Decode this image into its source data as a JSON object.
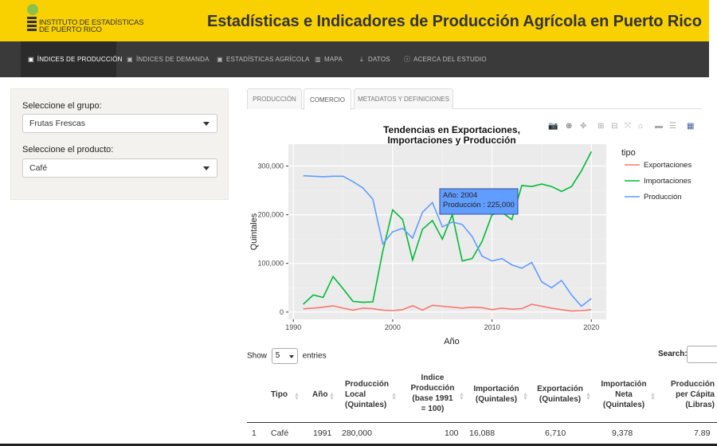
{
  "header": {
    "logo_line1": "INSTITUTO DE ESTADÍSTICAS",
    "logo_line2": "DE PUERTO RICO",
    "title": "Estadísticas e Indicadores de Producción Agrícola en Puerto Rico"
  },
  "nav": {
    "items": [
      {
        "label": "ÍNDICES DE PRODUCCIÓN",
        "icon": "chart-icon"
      },
      {
        "label": "ÍNDICES DE DEMANDA",
        "icon": "chart-icon"
      },
      {
        "label": "ESTADÍSTICAS AGRÍCOLA",
        "icon": "chart-icon"
      },
      {
        "label": "MAPA",
        "icon": "map-icon"
      },
      {
        "label": "DATOS",
        "icon": "download-icon"
      },
      {
        "label": "ACERCA DEL ESTUDIO",
        "icon": "info-icon"
      }
    ]
  },
  "sidebar": {
    "group_label": "Seleccione el grupo:",
    "group_value": "Frutas Frescas",
    "product_label": "Seleccione el producto:",
    "product_value": "Café"
  },
  "tabs": [
    "PRODUCCIÓN",
    "COMERCIO",
    "METADATOS Y DEFINICIONES"
  ],
  "chart_data": {
    "type": "line",
    "title": "Tendencias en Exportaciones, Importaciones y Producción",
    "title_line1": "Tendencias en Exportaciones,",
    "title_line2": "Importaciones y Producción",
    "xlabel": "Año",
    "ylabel": "Quintales",
    "xlim": [
      1989.5,
      2021.5
    ],
    "ylim": [
      -15000,
      345000
    ],
    "xticks": [
      "1990",
      "2000",
      "2010",
      "2020"
    ],
    "xtick_values": [
      1990,
      2000,
      2010,
      2020
    ],
    "yticks": [
      "0",
      "100,000",
      "200,000",
      "300,000"
    ],
    "ytick_values": [
      0,
      100000,
      200000,
      300000
    ],
    "legend_title": "tipo",
    "legend_position": "right",
    "grid": true,
    "x": [
      1991,
      1992,
      1993,
      1994,
      1995,
      1996,
      1997,
      1998,
      1999,
      2000,
      2001,
      2002,
      2003,
      2004,
      2005,
      2006,
      2007,
      2008,
      2009,
      2010,
      2011,
      2012,
      2013,
      2014,
      2015,
      2016,
      2017,
      2018,
      2019,
      2020
    ],
    "series": [
      {
        "name": "Exportaciones",
        "color": "#f8766d",
        "values": [
          6710,
          8000,
          10000,
          13000,
          8000,
          4000,
          8000,
          7000,
          4000,
          3000,
          5000,
          13000,
          4000,
          14000,
          12000,
          10000,
          8000,
          10000,
          9000,
          5000,
          8000,
          6000,
          7000,
          16000,
          12000,
          8000,
          5000,
          2000,
          3000,
          5000
        ]
      },
      {
        "name": "Importaciones",
        "color": "#00ba38",
        "values": [
          16088,
          35000,
          30000,
          73000,
          48000,
          22000,
          20000,
          21000,
          125000,
          210000,
          190000,
          107000,
          170000,
          188000,
          150000,
          200000,
          105000,
          110000,
          145000,
          200000,
          205000,
          190000,
          260000,
          258000,
          263000,
          258000,
          248000,
          258000,
          290000,
          330000
        ]
      },
      {
        "name": "Producción",
        "color": "#619cff",
        "values": [
          280000,
          279000,
          278000,
          279000,
          279000,
          268000,
          255000,
          232000,
          140000,
          165000,
          172000,
          152000,
          205000,
          225000,
          175000,
          185000,
          180000,
          155000,
          115000,
          105000,
          110000,
          97000,
          90000,
          102000,
          62000,
          50000,
          65000,
          35000,
          12000,
          28000
        ]
      }
    ],
    "tooltip": {
      "line1": "Año:  2004",
      "line2": "Producción : 225,000"
    }
  },
  "table": {
    "show_label": "Show",
    "entries_value": "5",
    "entries_label": "entries",
    "search_label": "Search:",
    "headers": [
      "Tipo",
      "Año",
      "Producción Local (Quintales)",
      "Indice Producción (base 1991 = 100)",
      "Importación (Quintales)",
      "Exportación (Quintales)",
      "Importación Neta (Quintales)",
      "Producción per Cápita (Libras)"
    ],
    "rows": [
      [
        "1",
        "Café",
        "1991",
        "280,000",
        "100",
        "16,088",
        "6,710",
        "9,378",
        "7.89"
      ]
    ]
  }
}
